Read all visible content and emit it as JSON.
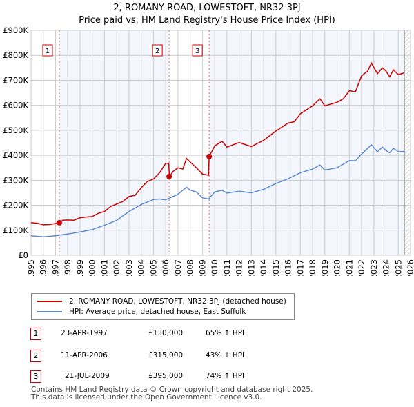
{
  "chart_data": {
    "type": "line",
    "title": "2, ROMANY ROAD, LOWESTOFT, NR32 3PJ",
    "subtitle": "Price paid vs. HM Land Registry's House Price Index (HPI)",
    "xlabel": "",
    "ylabel": "",
    "xlim": [
      1995,
      2026
    ],
    "ylim": [
      0,
      900000
    ],
    "y_ticks": [
      {
        "v": 0,
        "label": "£0"
      },
      {
        "v": 100000,
        "label": "£100K"
      },
      {
        "v": 200000,
        "label": "£200K"
      },
      {
        "v": 300000,
        "label": "£300K"
      },
      {
        "v": 400000,
        "label": "£400K"
      },
      {
        "v": 500000,
        "label": "£500K"
      },
      {
        "v": 600000,
        "label": "£600K"
      },
      {
        "v": 700000,
        "label": "£700K"
      },
      {
        "v": 800000,
        "label": "£800K"
      },
      {
        "v": 900000,
        "label": "£900K"
      }
    ],
    "x_ticks": [
      "1995",
      "1996",
      "1997",
      "1998",
      "1999",
      "2000",
      "2001",
      "2002",
      "2003",
      "2004",
      "2005",
      "2006",
      "2007",
      "2008",
      "2009",
      "2010",
      "2011",
      "2012",
      "2013",
      "2014",
      "2015",
      "2016",
      "2017",
      "2018",
      "2019",
      "2020",
      "2021",
      "2022",
      "2023",
      "2024",
      "2025",
      "2026"
    ],
    "grid": true,
    "series": [
      {
        "name": "2, ROMANY ROAD, LOWESTOFT, NR32 3PJ (detached house)",
        "color": "#cc0000",
        "x": [
          1995,
          1995.5,
          1996,
          1996.5,
          1997,
          1997.3,
          1997.6,
          1998,
          1998.5,
          1999,
          1999.5,
          2000,
          2000.5,
          2001,
          2001.5,
          2002,
          2002.5,
          2003,
          2003.5,
          2004,
          2004.5,
          2005,
          2005.5,
          2006,
          2006.25,
          2006.3,
          2006.6,
          2007,
          2007.4,
          2007.7,
          2008,
          2008.5,
          2009,
          2009.5,
          2009.55,
          2010,
          2010.6,
          2011,
          2012,
          2013,
          2014,
          2015,
          2016,
          2016.5,
          2017,
          2018,
          2018.6,
          2019,
          2020,
          2020.5,
          2021,
          2021.5,
          2022,
          2022.5,
          2022.8,
          2023.3,
          2023.7,
          2024,
          2024.3,
          2024.6,
          2025,
          2025.5
        ],
        "y": [
          130000,
          128000,
          122000,
          123000,
          127000,
          130000,
          140000,
          141000,
          140000,
          150000,
          153000,
          155000,
          168000,
          175000,
          195000,
          205000,
          215000,
          235000,
          240000,
          270000,
          295000,
          305000,
          330000,
          368000,
          368000,
          315000,
          335000,
          350000,
          345000,
          387000,
          373000,
          350000,
          325000,
          320000,
          395000,
          437000,
          456000,
          433000,
          451000,
          435000,
          460000,
          497000,
          529000,
          534000,
          566000,
          598000,
          626000,
          598000,
          612000,
          626000,
          658000,
          654000,
          718000,
          737000,
          769000,
          727000,
          750000,
          737000,
          714000,
          742000,
          723000,
          730000
        ]
      },
      {
        "name": "HPI: Average price, detached house, East Suffolk",
        "color": "#5b8bd0",
        "x": [
          1995,
          1996,
          1997,
          1998,
          1999,
          2000,
          2001,
          2002,
          2003,
          2004,
          2005,
          2005.5,
          2006,
          2007,
          2007.7,
          2008,
          2008.5,
          2009,
          2009.5,
          2010,
          2010.6,
          2011,
          2012,
          2013,
          2014,
          2015,
          2016,
          2017,
          2018,
          2018.6,
          2019,
          2020,
          2020.5,
          2021,
          2021.5,
          2022,
          2022.8,
          2023.3,
          2023.7,
          2024,
          2024.3,
          2024.6,
          2025,
          2025.5
        ],
        "y": [
          78000,
          74000,
          78000,
          85000,
          93000,
          103000,
          120000,
          140000,
          175000,
          203000,
          223000,
          225000,
          222000,
          244000,
          272000,
          261000,
          253000,
          230000,
          225000,
          253000,
          260000,
          249000,
          256000,
          250000,
          264000,
          287000,
          306000,
          330000,
          345000,
          361000,
          341000,
          350000,
          364000,
          379000,
          378000,
          405000,
          442000,
          414000,
          433000,
          419000,
          410000,
          428000,
          414000,
          416000
        ]
      }
    ],
    "sales": [
      {
        "label": "1",
        "x": 1997.31,
        "y": 130000
      },
      {
        "label": "2",
        "x": 2006.28,
        "y": 315000
      },
      {
        "label": "3",
        "x": 2009.55,
        "y": 395000
      }
    ]
  },
  "legend": {
    "items": [
      "2, ROMANY ROAD, LOWESTOFT, NR32 3PJ (detached house)",
      "HPI: Average price, detached house, East Suffolk"
    ]
  },
  "table": [
    {
      "num": "1",
      "date": "23-APR-1997",
      "price": "£130,000",
      "hpi": "65% ↑ HPI"
    },
    {
      "num": "2",
      "date": "11-APR-2006",
      "price": "£315,000",
      "hpi": "43% ↑ HPI"
    },
    {
      "num": "3",
      "date": "21-JUL-2009",
      "price": "£395,000",
      "hpi": "74% ↑ HPI"
    }
  ],
  "footer": [
    "Contains HM Land Registry data © Crown copyright and database right 2025.",
    "This data is licensed under the Open Government Licence v3.0."
  ]
}
